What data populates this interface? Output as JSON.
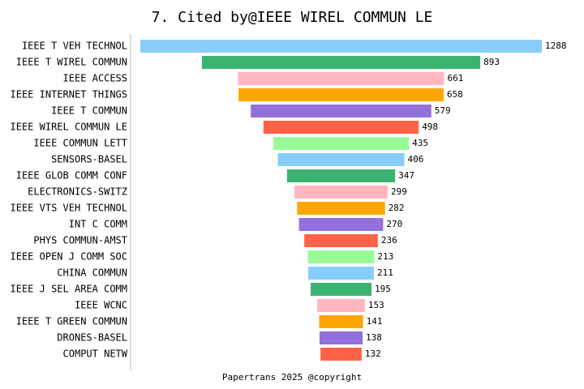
{
  "chart_data": {
    "type": "funnel-bar",
    "title": "7. Cited by@IEEE WIREL COMMUN LE",
    "categories": [
      "IEEE T VEH TECHNOL",
      "IEEE T WIREL COMMUN",
      "IEEE ACCESS",
      "IEEE INTERNET THINGS",
      "IEEE T COMMUN",
      "IEEE WIREL COMMUN LE",
      "IEEE COMMUN LETT",
      "SENSORS-BASEL",
      "IEEE GLOB COMM CONF",
      "ELECTRONICS-SWITZ",
      "IEEE VTS VEH TECHNOL",
      "INT C COMM",
      "PHYS COMMUN-AMST",
      "IEEE OPEN J COMM SOC",
      "CHINA COMMUN",
      "IEEE J SEL AREA COMM",
      "IEEE WCNC",
      "IEEE T GREEN COMMUN",
      "DRONES-BASEL",
      "COMPUT NETW"
    ],
    "values": [
      1288,
      893,
      661,
      658,
      579,
      498,
      435,
      406,
      347,
      299,
      282,
      270,
      236,
      213,
      211,
      195,
      153,
      141,
      138,
      132
    ],
    "colors": [
      "#87cefa",
      "#3cb371",
      "#ffb6c1",
      "#ffa500",
      "#9370db",
      "#ff6347",
      "#98fb98"
    ],
    "footer": "Papertrans 2025 @copyright"
  }
}
